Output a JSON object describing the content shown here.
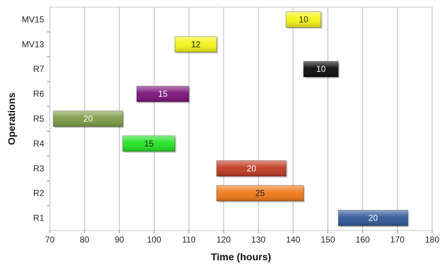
{
  "chart_data": {
    "type": "bar",
    "orientation": "horizontal",
    "subtype": "gantt",
    "xlabel": "Time (hours)",
    "ylabel": "Operations",
    "xlim": [
      70,
      180
    ],
    "x_ticks": [
      70,
      80,
      90,
      100,
      110,
      120,
      130,
      140,
      150,
      160,
      170,
      180
    ],
    "grid": "vertical gridlines on",
    "categories": [
      "R1",
      "R2",
      "R3",
      "R4",
      "R5",
      "R6",
      "R7",
      "MV13",
      "MV15"
    ],
    "tasks": [
      {
        "operation": "R1",
        "start": 153,
        "duration": 20,
        "label": "20",
        "color": "#2f5797",
        "label_color": "#ffffff"
      },
      {
        "operation": "R2",
        "start": 118,
        "duration": 25,
        "label": "25",
        "color": "#f07818",
        "label_color": "#222222"
      },
      {
        "operation": "R3",
        "start": 118,
        "duration": 20,
        "label": "20",
        "color": "#bf3a23",
        "label_color": "#ffffff"
      },
      {
        "operation": "R4",
        "start": 91,
        "duration": 15,
        "label": "15",
        "color": "#22e222",
        "label_color": "#222222"
      },
      {
        "operation": "R5",
        "start": 71,
        "duration": 20,
        "label": "20",
        "color": "#7d9c45",
        "label_color": "#ffffff"
      },
      {
        "operation": "R6",
        "start": 95,
        "duration": 15,
        "label": "15",
        "color": "#7a127a",
        "label_color": "#ffffff"
      },
      {
        "operation": "R7",
        "start": 143,
        "duration": 10,
        "label": "10",
        "color": "#0a0a0a",
        "label_color": "#ffffff"
      },
      {
        "operation": "MV13",
        "start": 106,
        "duration": 12,
        "label": "12",
        "color": "#f4f416",
        "label_color": "#222222"
      },
      {
        "operation": "MV15",
        "start": 138,
        "duration": 10,
        "label": "10",
        "color": "#f4f416",
        "label_color": "#222222"
      }
    ]
  }
}
